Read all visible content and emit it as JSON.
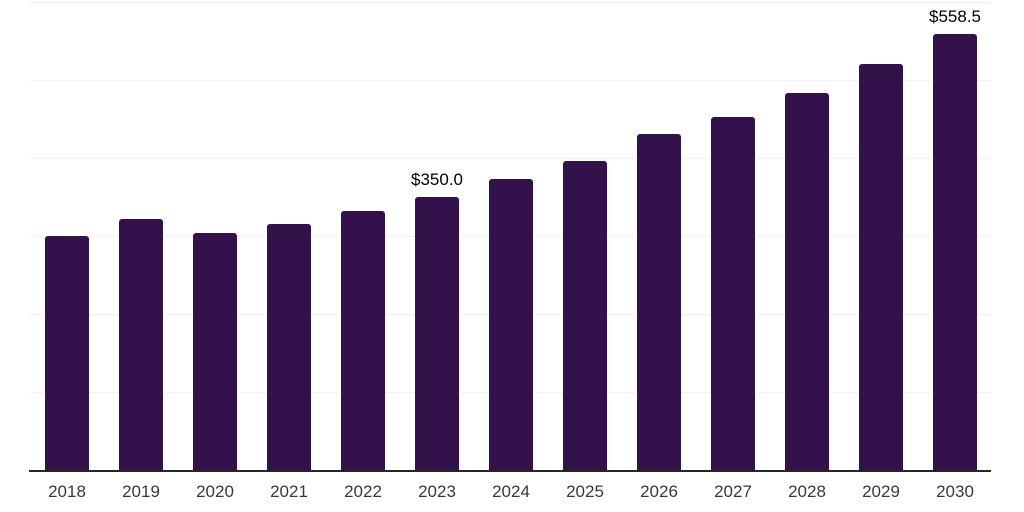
{
  "chart_data": {
    "type": "bar",
    "title": "",
    "xlabel": "",
    "ylabel": "",
    "categories": [
      "2018",
      "2019",
      "2020",
      "2021",
      "2022",
      "2023",
      "2024",
      "2025",
      "2026",
      "2027",
      "2028",
      "2029",
      "2030"
    ],
    "values": [
      300.0,
      321.8,
      303.8,
      315.0,
      331.5,
      350.0,
      373.1,
      396.2,
      430.8,
      452.6,
      483.3,
      520.5,
      558.5
    ],
    "data_labels": [
      "",
      "",
      "",
      "",
      "",
      "$350.0",
      "",
      "",
      "",
      "",
      "",
      "",
      "$558.5"
    ],
    "ylim": [
      0,
      600
    ],
    "grid_step": 100,
    "grid": "horizontal",
    "y_tick_labels_visible": false,
    "legend_position": "none"
  },
  "style": {
    "bar_color": "#33124B",
    "grid_color": "#f1f1f1",
    "axis_color": "#262626",
    "tick_label_color": "#383838",
    "data_label_color": "#000000",
    "background_color": "#ffffff"
  }
}
